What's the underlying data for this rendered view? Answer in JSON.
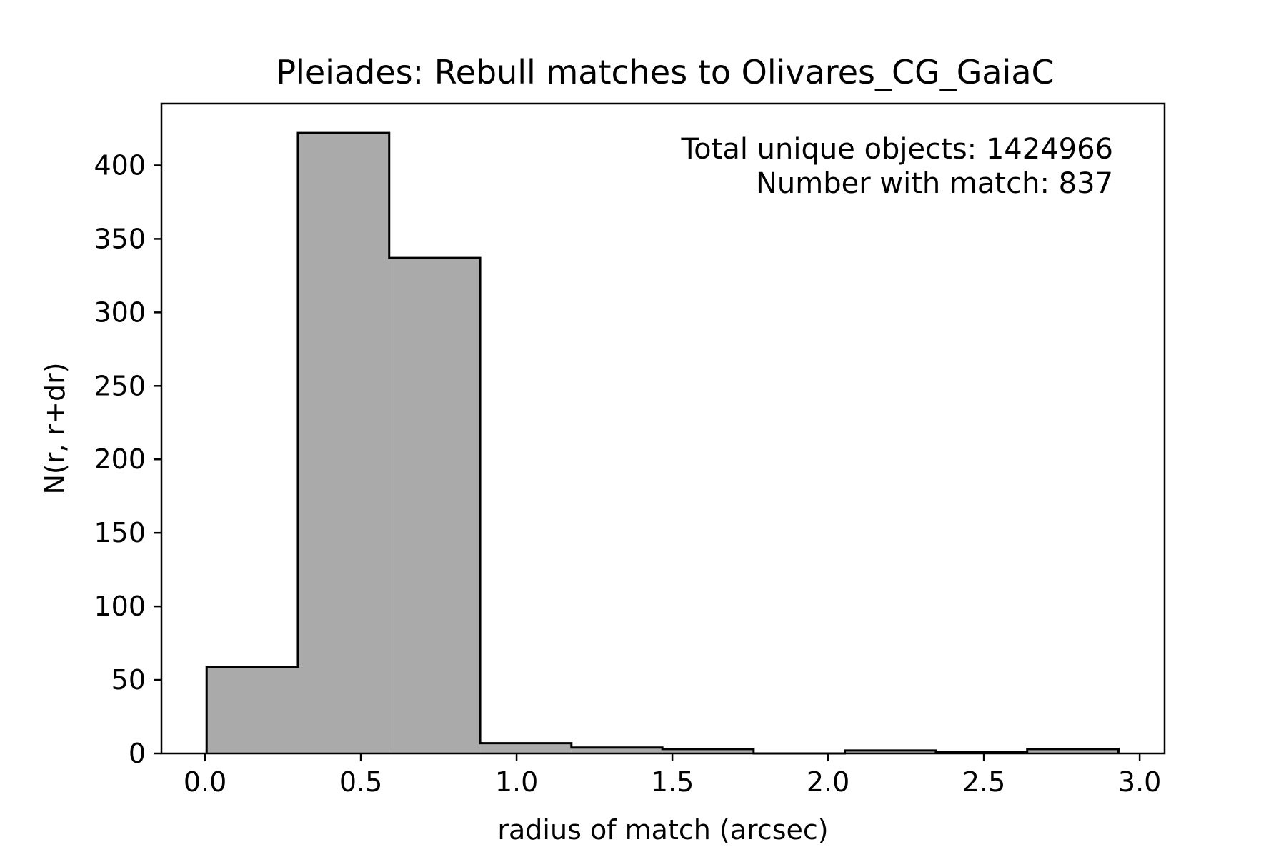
{
  "chart_data": {
    "type": "bar",
    "title": "Pleiades: Rebull matches to Olivares_CG_GaiaC",
    "xlabel": "radius of match (arcsec)",
    "ylabel": "N(r, r+dr)",
    "xlim": [
      -0.14,
      3.08
    ],
    "ylim": [
      0,
      442
    ],
    "xticks": [
      0.0,
      0.5,
      1.0,
      1.5,
      2.0,
      2.5,
      3.0
    ],
    "xtick_labels": [
      "0.0",
      "0.5",
      "1.0",
      "1.5",
      "2.0",
      "2.5",
      "3.0"
    ],
    "yticks": [
      0,
      50,
      100,
      150,
      200,
      250,
      300,
      350,
      400
    ],
    "ytick_labels": [
      "0",
      "50",
      "100",
      "150",
      "200",
      "250",
      "300",
      "350",
      "400"
    ],
    "bin_edges": [
      0.005,
      0.298,
      0.591,
      0.883,
      1.176,
      1.468,
      1.761,
      2.054,
      2.346,
      2.639,
      2.932
    ],
    "values": [
      59,
      422,
      337,
      7,
      4,
      3,
      0,
      2,
      1,
      3
    ],
    "bar_color": "#aaaaaa",
    "edge_color": "#000000",
    "grid": false,
    "annotations": [
      "Total unique objects: 1424966",
      "Number with match: 837"
    ],
    "annotation_position": "top-right"
  }
}
